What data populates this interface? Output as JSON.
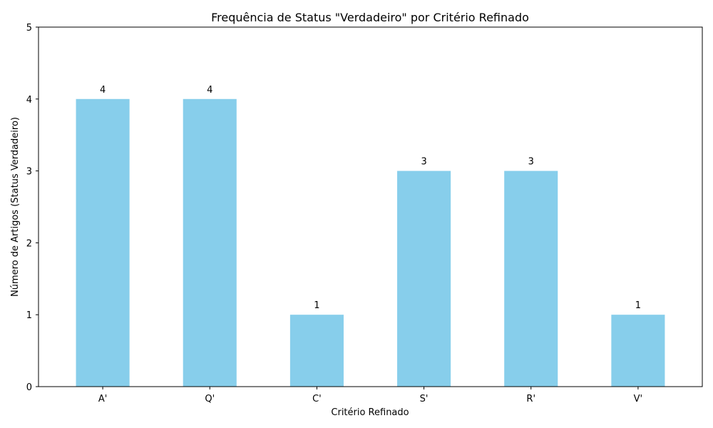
{
  "chart_data": {
    "type": "bar",
    "title": "Frequência de Status \"Verdadeiro\" por Critério Refinado",
    "xlabel": "Critério Refinado",
    "ylabel": "Número de Artigos (Status Verdadeiro)",
    "categories": [
      "A'",
      "Q'",
      "C'",
      "S'",
      "R'",
      "V'"
    ],
    "values": [
      4,
      4,
      1,
      3,
      3,
      1
    ],
    "data_labels": [
      "4",
      "4",
      "1",
      "3",
      "3",
      "1"
    ],
    "ylim": [
      0,
      5
    ],
    "yticks": [
      0,
      1,
      2,
      3,
      4,
      5
    ],
    "ytick_labels": [
      "0",
      "1",
      "2",
      "3",
      "4",
      "5"
    ],
    "grid": false,
    "legend": "none",
    "colors": {
      "bar": "#87ceeb",
      "axis": "#000000"
    }
  }
}
